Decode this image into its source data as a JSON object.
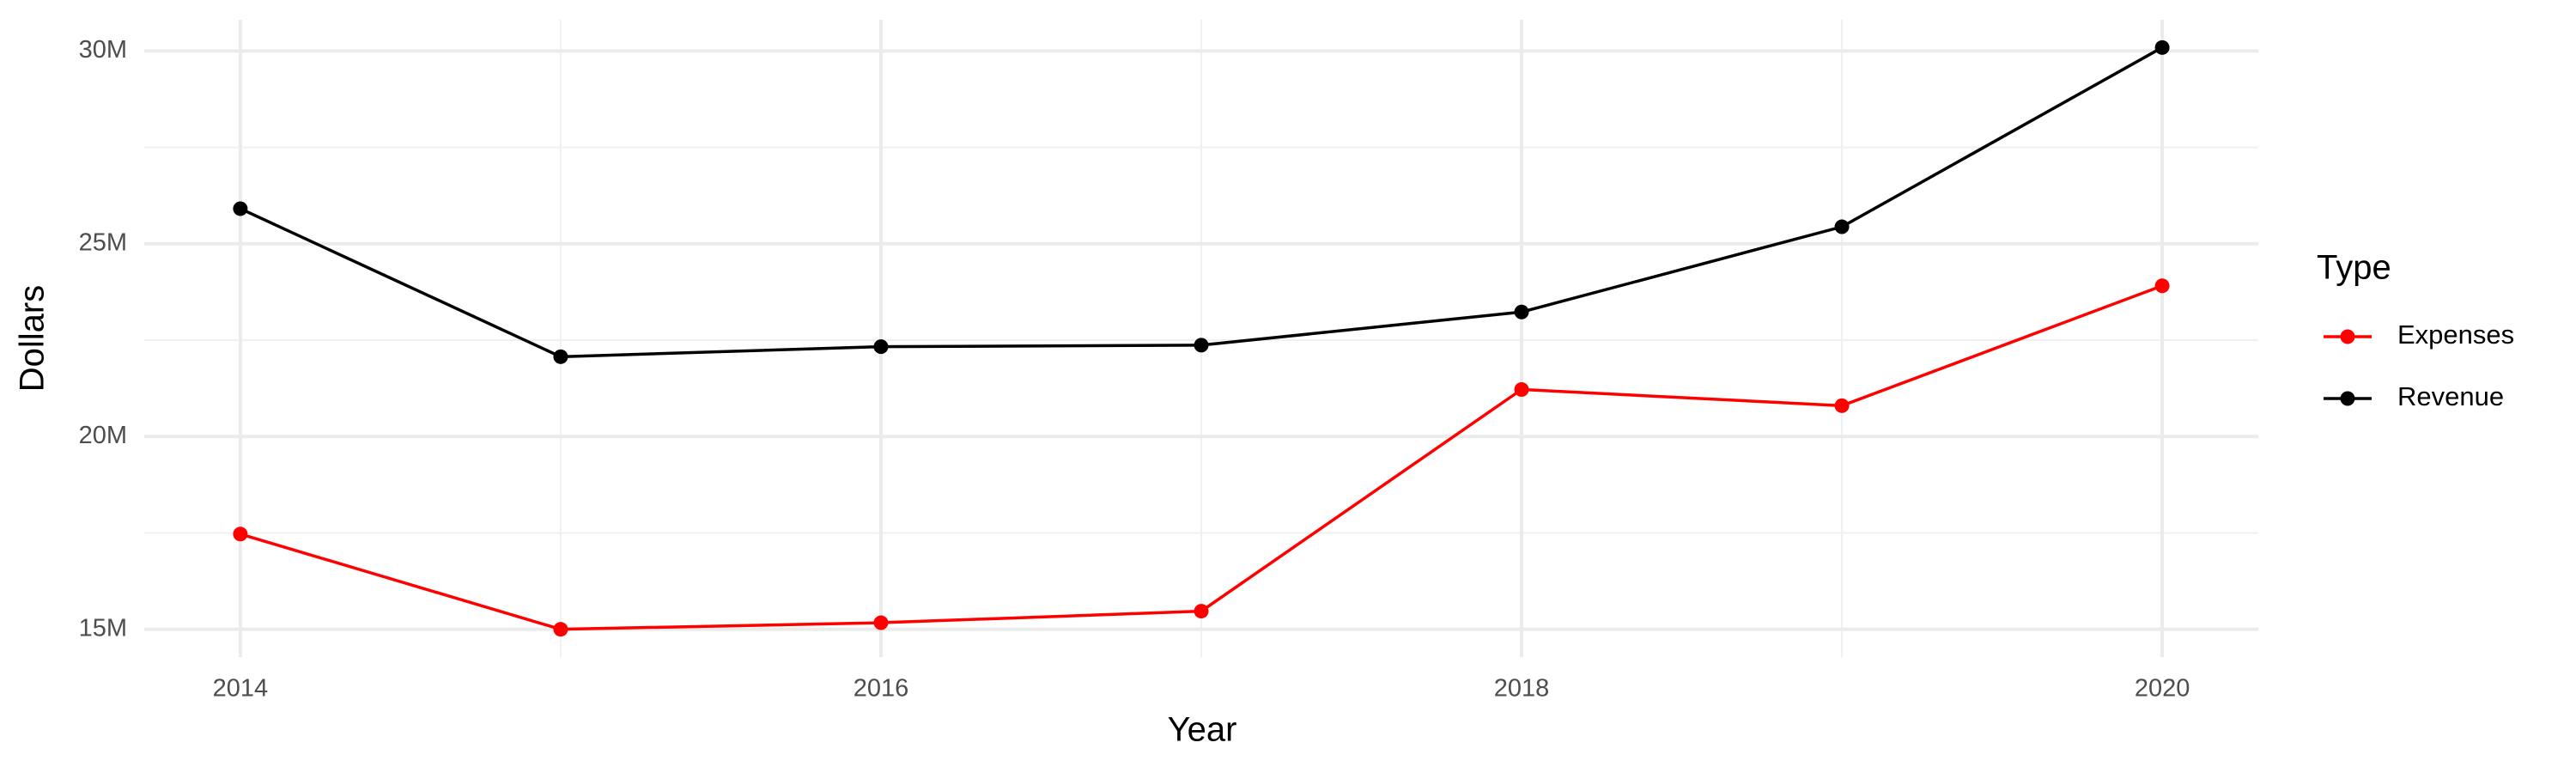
{
  "chart_data": {
    "type": "line",
    "x_label": "Year",
    "y_label": "Dollars",
    "x": [
      2014,
      2015,
      2016,
      2017,
      2018,
      2019,
      2020
    ],
    "series": [
      {
        "name": "Expenses",
        "color": "#ff0000",
        "values": [
          17470000,
          15000000,
          15170000,
          15470000,
          21220000,
          20800000,
          23910000
        ]
      },
      {
        "name": "Revenue",
        "color": "#000000",
        "values": [
          25910000,
          22070000,
          22330000,
          22370000,
          23230000,
          25440000,
          30090000
        ]
      }
    ],
    "legend_title": "Type",
    "xlim": [
      2013.7,
      2020.3
    ],
    "xticks": [
      2014,
      2016,
      2018,
      2020
    ],
    "ylim": [
      14280000,
      30810000
    ],
    "yticks": [
      {
        "value": 15000000,
        "label": "15M"
      },
      {
        "value": 20000000,
        "label": "20M"
      },
      {
        "value": 25000000,
        "label": "25M"
      },
      {
        "value": 30000000,
        "label": "30M"
      }
    ],
    "grid": true,
    "legend_position": "right"
  }
}
